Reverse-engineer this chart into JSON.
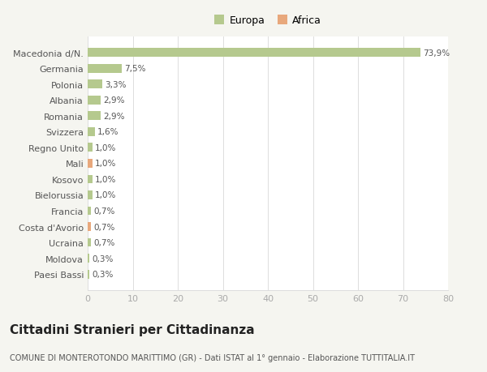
{
  "categories": [
    "Macedonia d/N.",
    "Germania",
    "Polonia",
    "Albania",
    "Romania",
    "Svizzera",
    "Regno Unito",
    "Mali",
    "Kosovo",
    "Bielorussia",
    "Francia",
    "Costa d'Avorio",
    "Ucraina",
    "Moldova",
    "Paesi Bassi"
  ],
  "values": [
    73.9,
    7.5,
    3.3,
    2.9,
    2.9,
    1.6,
    1.0,
    1.0,
    1.0,
    1.0,
    0.7,
    0.7,
    0.7,
    0.3,
    0.3
  ],
  "labels": [
    "73,9%",
    "7,5%",
    "3,3%",
    "2,9%",
    "2,9%",
    "1,6%",
    "1,0%",
    "1,0%",
    "1,0%",
    "1,0%",
    "0,7%",
    "0,7%",
    "0,7%",
    "0,3%",
    "0,3%"
  ],
  "colors": [
    "#b5c98e",
    "#b5c98e",
    "#b5c98e",
    "#b5c98e",
    "#b5c98e",
    "#b5c98e",
    "#b5c98e",
    "#e8a87c",
    "#b5c98e",
    "#b5c98e",
    "#b5c98e",
    "#e8a87c",
    "#b5c98e",
    "#b5c98e",
    "#b5c98e"
  ],
  "legend_europa_color": "#b5c98e",
  "legend_africa_color": "#e8a87c",
  "background_color": "#f5f5f0",
  "bar_area_color": "#ffffff",
  "title": "Cittadini Stranieri per Cittadinanza",
  "subtitle": "COMUNE DI MONTEROTONDO MARITTIMO (GR) - Dati ISTAT al 1° gennaio - Elaborazione TUTTITALIA.IT",
  "xlim": [
    0,
    80
  ],
  "xticks": [
    0,
    10,
    20,
    30,
    40,
    50,
    60,
    70,
    80
  ],
  "label_fontsize": 7.5,
  "ytick_fontsize": 8,
  "xtick_fontsize": 8,
  "title_fontsize": 11,
  "subtitle_fontsize": 7
}
